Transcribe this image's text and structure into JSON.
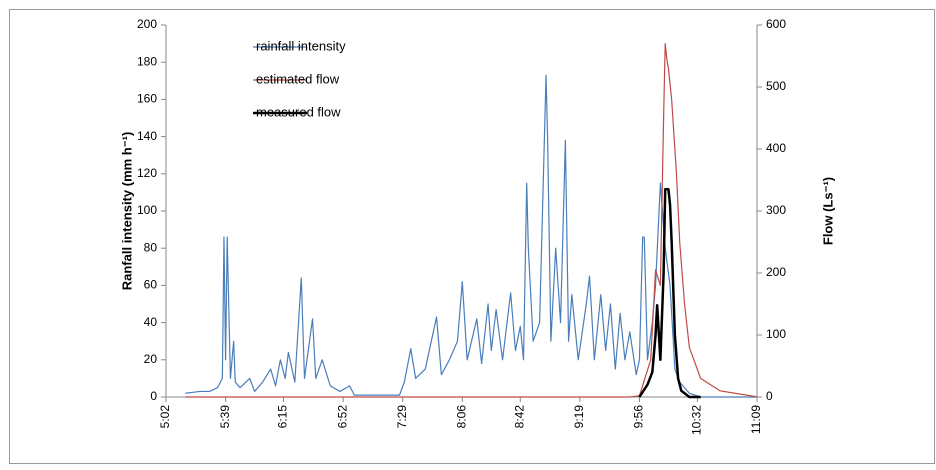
{
  "chart_data": {
    "type": "line",
    "y_label": "Ranfall intensity (mm h⁻¹)",
    "y2_label": "Flow (Ls⁻¹)",
    "xlim": [
      302,
      669
    ],
    "xticks": [
      {
        "value": 302,
        "label": "5:02"
      },
      {
        "value": 339,
        "label": "5:39"
      },
      {
        "value": 375,
        "label": "6:15"
      },
      {
        "value": 412,
        "label": "6:52"
      },
      {
        "value": 449,
        "label": "7:29"
      },
      {
        "value": 486,
        "label": "8:06"
      },
      {
        "value": 522,
        "label": "8:42"
      },
      {
        "value": 559,
        "label": "9:19"
      },
      {
        "value": 596,
        "label": "9:56"
      },
      {
        "value": 632,
        "label": "10:32"
      },
      {
        "value": 669,
        "label": "11:09"
      }
    ],
    "ylim": [
      0,
      200
    ],
    "yticks": [
      0,
      20,
      40,
      60,
      80,
      100,
      120,
      140,
      160,
      180,
      200
    ],
    "y2lim": [
      0,
      600
    ],
    "y2ticks": [
      0,
      100,
      200,
      300,
      400,
      500,
      600
    ],
    "series": [
      {
        "name": "rainfall intensity",
        "color": "#4a7ebb",
        "width": 1.2,
        "x": [
          314,
          323,
          329,
          334,
          337,
          338,
          339,
          340,
          342,
          344,
          345,
          348,
          354,
          357,
          362,
          367,
          370,
          373,
          376,
          378,
          382,
          386,
          388,
          393,
          395,
          399,
          404,
          410,
          416,
          419,
          447,
          450,
          454,
          457,
          463,
          470,
          473,
          478,
          483,
          486,
          489,
          495,
          498,
          502,
          504,
          507,
          511,
          516,
          519,
          522,
          524,
          526,
          527,
          530,
          534,
          538,
          539,
          541,
          544,
          547,
          550,
          552,
          554,
          558,
          563,
          565,
          568,
          572,
          575,
          578,
          581,
          584,
          587,
          590,
          594,
          596,
          598,
          599,
          601,
          604,
          606,
          609,
          612,
          615,
          618,
          621,
          627,
          634,
          669
        ],
        "values": [
          2,
          3,
          3,
          5,
          10,
          86,
          20,
          86,
          10,
          30,
          8,
          5,
          10,
          3,
          8,
          15,
          6,
          20,
          10,
          24,
          8,
          64,
          10,
          42,
          10,
          20,
          6,
          3,
          6,
          1,
          1,
          8,
          26,
          10,
          15,
          43,
          12,
          20,
          30,
          62,
          20,
          42,
          18,
          50,
          25,
          47,
          20,
          56,
          25,
          38,
          20,
          115,
          80,
          30,
          40,
          173,
          138,
          30,
          80,
          40,
          138,
          30,
          55,
          20,
          50,
          65,
          20,
          55,
          25,
          50,
          15,
          45,
          20,
          35,
          12,
          20,
          86,
          86,
          20,
          40,
          60,
          115,
          80,
          60,
          15,
          8,
          2,
          0,
          0
        ]
      },
      {
        "name": "estimated flow",
        "color": "#be4b48",
        "axis": "y2",
        "width": 1.2,
        "x": [
          314,
          590,
          596,
          603,
          606,
          609,
          611,
          612,
          613,
          614,
          616,
          619,
          621,
          624,
          627,
          634,
          646,
          665,
          669
        ],
        "values": [
          0,
          0,
          2,
          60,
          205,
          180,
          450,
          570,
          545,
          530,
          480,
          360,
          250,
          150,
          80,
          30,
          10,
          2,
          0
        ]
      },
      {
        "name": "measured flow",
        "color": "#000000",
        "axis": "y2",
        "width": 2.5,
        "x": [
          596,
          601,
          604,
          606,
          607,
          609,
          611,
          612,
          614,
          615,
          616,
          618,
          620,
          622,
          627,
          634
        ],
        "values": [
          0,
          20,
          40,
          100,
          148,
          60,
          200,
          335,
          335,
          310,
          250,
          100,
          30,
          10,
          0,
          0
        ]
      }
    ],
    "legend": "upper-left"
  }
}
